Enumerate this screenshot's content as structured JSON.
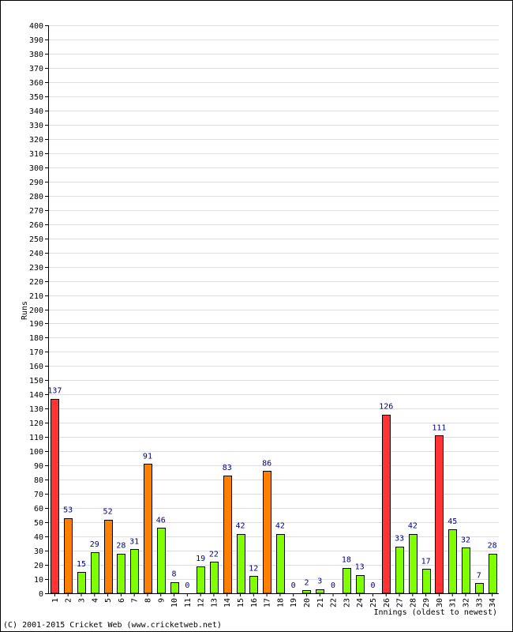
{
  "chart_data": {
    "type": "bar",
    "title": "",
    "xlabel": "Innings (oldest to newest)",
    "ylabel": "Runs",
    "ylim": [
      0,
      400
    ],
    "ytick_step": 10,
    "grid": true,
    "categories": [
      "1",
      "2",
      "3",
      "4",
      "5",
      "6",
      "7",
      "8",
      "9",
      "10",
      "11",
      "12",
      "13",
      "14",
      "15",
      "16",
      "17",
      "18",
      "19",
      "20",
      "21",
      "22",
      "23",
      "24",
      "25",
      "26",
      "27",
      "28",
      "29",
      "30",
      "31",
      "32",
      "33",
      "34"
    ],
    "values": [
      137,
      53,
      15,
      29,
      52,
      28,
      31,
      91,
      46,
      8,
      0,
      19,
      22,
      83,
      42,
      12,
      86,
      42,
      0,
      2,
      3,
      0,
      18,
      13,
      0,
      126,
      33,
      42,
      17,
      111,
      45,
      32,
      7,
      28
    ],
    "colors": {
      "under_50": "#80ff00",
      "fifty_plus": "#ff8000",
      "hundred_plus": "#ff3333",
      "data_label": "#000080",
      "grid": "#dddddd",
      "bar_outline": "#000000"
    }
  },
  "footer": {
    "copyright": "(C) 2001-2015 Cricket Web (www.cricketweb.net)"
  }
}
